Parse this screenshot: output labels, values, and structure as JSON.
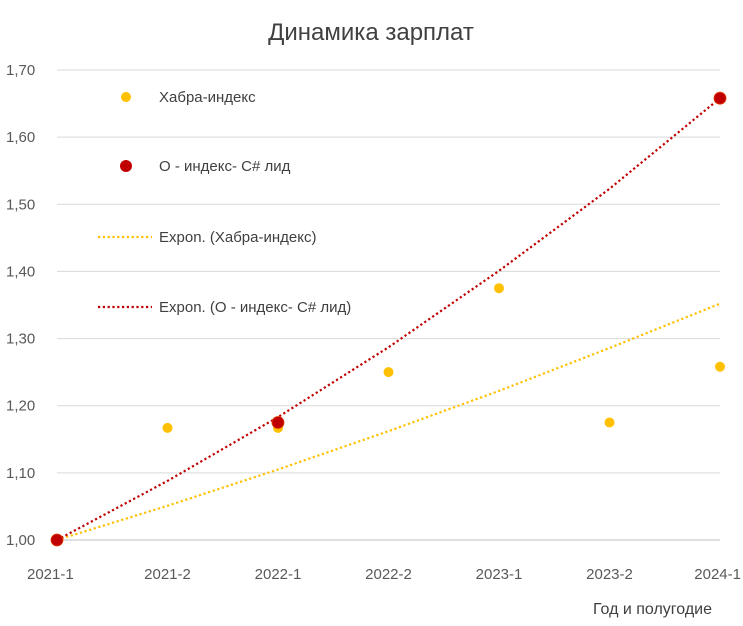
{
  "chart_data": {
    "type": "scatter",
    "title": "Динамика зарплат",
    "xlabel": "Год и полугодие",
    "ylabel": "",
    "categories": [
      "2021-1",
      "2021-2",
      "2022-1",
      "2022-2",
      "2023-1",
      "2023-2",
      "2024-1"
    ],
    "yticks": [
      "1,00",
      "1,10",
      "1,20",
      "1,30",
      "1,40",
      "1,50",
      "1,60",
      "1,70"
    ],
    "ylim": [
      1.0,
      1.7
    ],
    "grid": true,
    "legend_position": "top-left inside plot",
    "series": [
      {
        "name": "Хабра-индекс",
        "color": "#FFC000",
        "values": [
          1.0,
          1.167,
          1.167,
          1.25,
          1.375,
          1.175,
          1.258
        ]
      },
      {
        "name": "О - индекс- C# лид",
        "color": "#C00000",
        "points": [
          {
            "category": "2021-1",
            "value": 1.0
          },
          {
            "category": "2022-1",
            "value": 1.175
          },
          {
            "category": "2024-1",
            "value": 1.658
          }
        ]
      }
    ],
    "trendlines": [
      {
        "name": "Expon. (Хабра-индекс)",
        "color": "#FFC000",
        "type": "exponential",
        "values": [
          1.0,
          1.051,
          1.105,
          1.162,
          1.222,
          1.286,
          1.352
        ]
      },
      {
        "name": "Expon. (О - индекс- C# лид)",
        "color": "#C00000",
        "type": "exponential",
        "values": [
          1.0,
          1.088,
          1.183,
          1.287,
          1.401,
          1.523,
          1.658
        ]
      }
    ]
  }
}
